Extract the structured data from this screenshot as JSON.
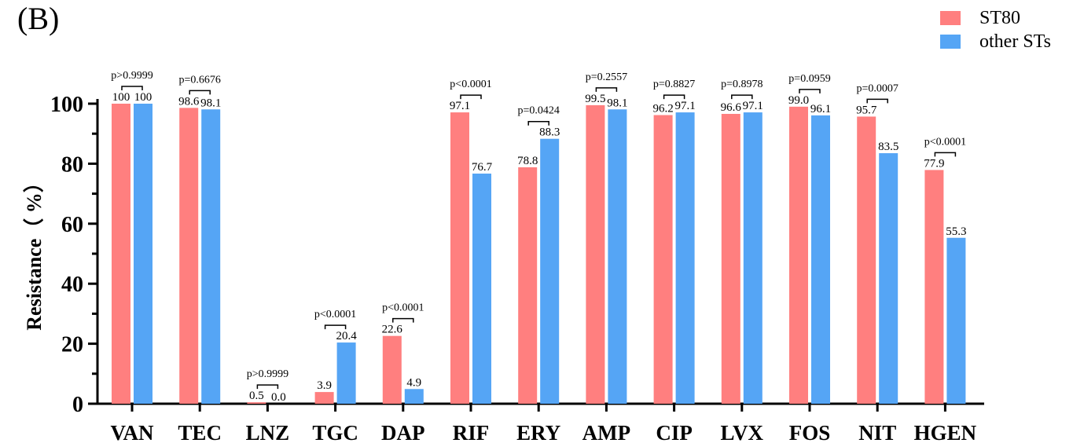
{
  "panel_label": "(B)",
  "legend": {
    "items": [
      {
        "label": "ST80",
        "color": "#ff7f7f"
      },
      {
        "label": "other STs",
        "color": "#55a5f5"
      }
    ]
  },
  "chart_data": {
    "type": "bar",
    "title": "",
    "xlabel": "",
    "ylabel": "Resistance（ %）",
    "ylim": [
      0,
      100
    ],
    "yticks": [
      0,
      20,
      40,
      60,
      80,
      100
    ],
    "categories": [
      "VAN",
      "TEC",
      "LNZ",
      "TGC",
      "DAP",
      "RIF",
      "ERY",
      "AMP",
      "CIP",
      "LVX",
      "FOS",
      "NIT",
      "HGEN"
    ],
    "series": [
      {
        "name": "ST80",
        "color": "#ff7f7f",
        "values": [
          100,
          98.6,
          0.5,
          3.9,
          22.6,
          97.1,
          78.8,
          99.5,
          96.2,
          96.6,
          99.0,
          95.7,
          77.9
        ],
        "labels": [
          "100",
          "98.6",
          "0.5",
          "3.9",
          "22.6",
          "97.1",
          "78.8",
          "99.5",
          "96.2",
          "96.6",
          "99.0",
          "95.7",
          "77.9"
        ]
      },
      {
        "name": "other STs",
        "color": "#55a5f5",
        "values": [
          100,
          98.1,
          0.0,
          20.4,
          4.9,
          76.7,
          88.3,
          98.1,
          97.1,
          97.1,
          96.1,
          83.5,
          55.3
        ],
        "labels": [
          "100",
          "98.1",
          "0.0",
          "20.4",
          "4.9",
          "76.7",
          "88.3",
          "98.1",
          "97.1",
          "97.1",
          "96.1",
          "83.5",
          "55.3"
        ]
      }
    ],
    "p_values": [
      "p>0.9999",
      "p=0.6676",
      "p>0.9999",
      "p<0.0001",
      "p<0.0001",
      "p<0.0001",
      "p=0.0424",
      "p=0.2557",
      "p=0.8827",
      "p=0.8978",
      "p=0.0959",
      "p=0.0007",
      "p<0.0001"
    ],
    "grid": false,
    "legend_position": "top-right"
  }
}
